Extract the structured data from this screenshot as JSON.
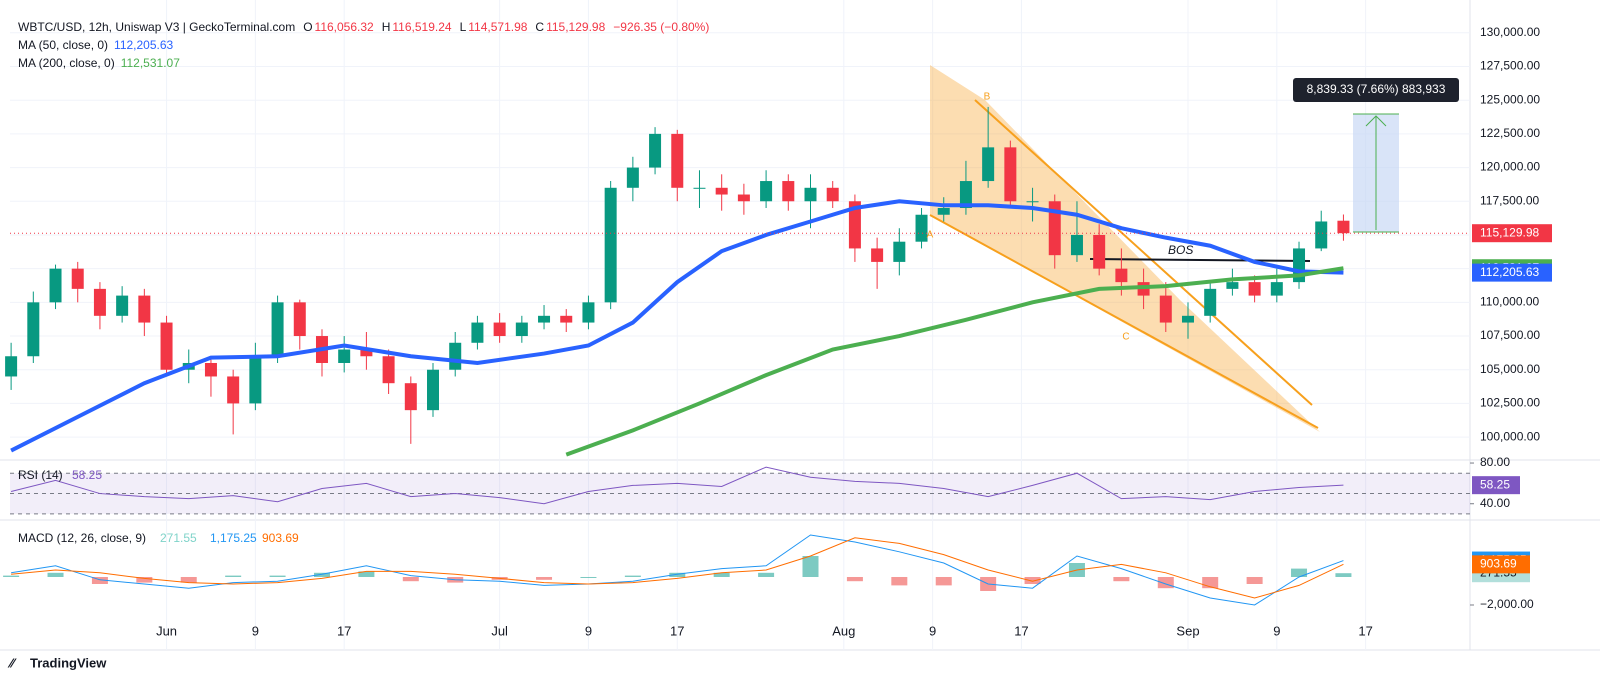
{
  "chart_data": {
    "type": "candlestick",
    "header": {
      "symbol": "WBTC/USD, 12h, Uniswap V3 | GeckoTerminal.com",
      "ohlc": [
        [
          "O",
          "116,056.32"
        ],
        [
          "H",
          "116,519.24"
        ],
        [
          "L",
          "114,571.98"
        ],
        [
          "C",
          "115,129.98"
        ]
      ],
      "change": "−926.35 (−0.80%)"
    },
    "x": [
      -14,
      -12,
      -10,
      -8,
      -6,
      -4,
      -2,
      0,
      2,
      4,
      6,
      8,
      10,
      12,
      14,
      16,
      18,
      20,
      22,
      24,
      26,
      28,
      30,
      32,
      34,
      36,
      38,
      40,
      42,
      44,
      46,
      48,
      50,
      52,
      54,
      56,
      58,
      60,
      62,
      64,
      66,
      68,
      70,
      72,
      74,
      76,
      78,
      80,
      82,
      84,
      86,
      88,
      90,
      92,
      94,
      96,
      98,
      100,
      102,
      104,
      106
    ],
    "open": [
      104500,
      106000,
      110000,
      112500,
      111000,
      109000,
      110500,
      108500,
      105000,
      105500,
      104500,
      102500,
      106000,
      110000,
      107500,
      105500,
      106500,
      106000,
      104000,
      102000,
      105000,
      107000,
      108500,
      107500,
      108500,
      109000,
      108500,
      110000,
      118500,
      120000,
      122500,
      118500,
      118500,
      118000,
      117500,
      119000,
      117500,
      118500,
      117500,
      114000,
      113000,
      114500,
      116500,
      117000,
      119000,
      121500,
      117500,
      117500,
      113500,
      115000,
      112500,
      111500,
      110500,
      108500,
      109000,
      111000,
      111500,
      110500,
      111500,
      114000,
      116056.32
    ],
    "high": [
      107000,
      110800,
      112800,
      113000,
      111500,
      111200,
      111000,
      109000,
      106500,
      106000,
      105000,
      107000,
      110500,
      110200,
      108000,
      107500,
      107800,
      106500,
      104500,
      105500,
      107800,
      109000,
      109200,
      109000,
      109800,
      109500,
      110500,
      119000,
      120800,
      123000,
      122800,
      119800,
      119500,
      118800,
      119800,
      119500,
      119500,
      119000,
      118000,
      114800,
      115500,
      117000,
      117800,
      120500,
      124500,
      122000,
      118500,
      118000,
      117500,
      115800,
      114000,
      112500,
      111500,
      110000,
      111500,
      112500,
      112000,
      112500,
      114500,
      116800,
      116519.24
    ],
    "low": [
      103500,
      105500,
      109500,
      110000,
      108000,
      108500,
      107500,
      104500,
      104000,
      103000,
      100200,
      102000,
      105500,
      106500,
      104500,
      104800,
      105000,
      103200,
      99500,
      101500,
      104500,
      106500,
      107000,
      107000,
      108000,
      107800,
      108000,
      109500,
      117500,
      119500,
      117500,
      117000,
      116800,
      116500,
      117000,
      116800,
      115500,
      117000,
      113000,
      111000,
      112000,
      114000,
      116000,
      116500,
      118500,
      117000,
      116000,
      112500,
      113000,
      112000,
      110500,
      109500,
      107800,
      107300,
      108500,
      110500,
      110000,
      110000,
      111000,
      113800,
      114571.98
    ],
    "close": [
      106000,
      110000,
      112500,
      111000,
      109000,
      110500,
      108500,
      105000,
      105500,
      104500,
      102500,
      106000,
      110000,
      107500,
      105500,
      106500,
      106000,
      104000,
      102000,
      105000,
      107000,
      108500,
      107500,
      108500,
      109000,
      108500,
      110000,
      118500,
      120000,
      122500,
      118500,
      118500,
      118000,
      117500,
      119000,
      117500,
      118500,
      117500,
      114000,
      113000,
      114500,
      116500,
      117000,
      119000,
      121500,
      117500,
      117500,
      113500,
      115000,
      112500,
      111500,
      110500,
      108500,
      109000,
      111000,
      111500,
      110500,
      111500,
      114000,
      116000,
      115129.98
    ],
    "up_color": "#089981",
    "down_color": "#f23645",
    "overlays": [
      {
        "name": "MA (50, close, 0)",
        "value_label": "112,205.63",
        "color": "#2962ff",
        "x": [
          -14,
          -8,
          -2,
          4,
          10,
          16,
          22,
          28,
          34,
          38,
          42,
          46,
          50,
          54,
          58,
          62,
          66,
          70,
          74,
          78,
          82,
          86,
          90,
          94,
          98,
          102,
          106
        ],
        "values": [
          99000,
          101500,
          104000,
          105900,
          106000,
          106800,
          106000,
          105500,
          106200,
          106800,
          108500,
          111500,
          113800,
          115000,
          116000,
          117000,
          117500,
          117200,
          117200,
          117000,
          116500,
          115500,
          114800,
          114200,
          113000,
          112300,
          112205.63
        ]
      },
      {
        "name": "MA (200, close, 0)",
        "value_label": "112,531.07",
        "color": "#4caf50",
        "x": [
          36,
          42,
          48,
          54,
          60,
          66,
          72,
          78,
          84,
          90,
          96,
          102,
          106
        ],
        "values": [
          98700,
          100500,
          102500,
          104600,
          106500,
          107500,
          108700,
          110000,
          111000,
          111200,
          111700,
          112000,
          112531.07
        ]
      }
    ],
    "price_labels": [
      {
        "value": 115129.98,
        "label": "115,129.98",
        "color": "#f23645"
      },
      {
        "value": 112531.07,
        "label": "112,531.07",
        "color": "#4caf50"
      },
      {
        "value": 112205.63,
        "label": "112,205.63",
        "color": "#2962ff"
      }
    ],
    "xlim": [
      -14.1,
      117.4
    ],
    "xticks": [
      {
        "value": 0,
        "label": "Jun"
      },
      {
        "value": 8,
        "label": "9"
      },
      {
        "value": 16,
        "label": "17"
      },
      {
        "value": 30,
        "label": "Jul"
      },
      {
        "value": 38,
        "label": "9"
      },
      {
        "value": 46,
        "label": "17"
      },
      {
        "value": 61,
        "label": "Aug"
      },
      {
        "value": 69,
        "label": "9"
      },
      {
        "value": 77,
        "label": "17"
      },
      {
        "value": 92,
        "label": "Sep"
      },
      {
        "value": 100,
        "label": "9"
      },
      {
        "value": 108,
        "label": "17"
      }
    ],
    "ylim": [
      98450,
      130950
    ],
    "yticks": [
      {
        "value": 100000,
        "label": "100,000.00"
      },
      {
        "value": 102500,
        "label": "102,500.00"
      },
      {
        "value": 105000,
        "label": "105,000.00"
      },
      {
        "value": 107500,
        "label": "107,500.00"
      },
      {
        "value": 110000,
        "label": "110,000.00"
      },
      {
        "value": 112500,
        "label": "112,500.00"
      },
      {
        "value": 115000,
        "label": "115,000.00"
      },
      {
        "value": 117500,
        "label": "117,500.00"
      },
      {
        "value": 120000,
        "label": "120,000.00"
      },
      {
        "value": 122500,
        "label": "122,500.00"
      },
      {
        "value": 125000,
        "label": "125,000.00"
      },
      {
        "value": 127500,
        "label": "127,500.00"
      },
      {
        "value": 130000,
        "label": "130,000.00"
      }
    ],
    "annotations": {
      "bos": "BOS",
      "measure": "8,839.33 (7.66%) 883,933",
      "points": [
        "A",
        "B",
        "C"
      ]
    },
    "rsi": {
      "name": "RSI (14)",
      "color": "#7e57c2",
      "x": [
        -14,
        -10,
        -6,
        -2,
        2,
        6,
        10,
        14,
        18,
        22,
        26,
        30,
        34,
        38,
        42,
        46,
        50,
        54,
        58,
        62,
        66,
        70,
        74,
        78,
        82,
        86,
        90,
        94,
        98,
        102,
        106
      ],
      "values": [
        52,
        63,
        50,
        47,
        45,
        48,
        42,
        55,
        60,
        47,
        50,
        46,
        40,
        52,
        58,
        60,
        57,
        76,
        66,
        62,
        60,
        55,
        47,
        58,
        70,
        45,
        47,
        44,
        52,
        56,
        58.25
      ],
      "ylim": [
        25,
        82
      ],
      "yticks": [
        {
          "value": 80,
          "label": "80.00"
        },
        {
          "value": 40,
          "label": "40.00"
        }
      ]
    },
    "macd": {
      "name": "MACD (12, 26, close, 9)",
      "x": [
        -14,
        -10,
        -6,
        -2,
        2,
        6,
        10,
        14,
        18,
        22,
        26,
        30,
        34,
        38,
        42,
        46,
        50,
        54,
        58,
        62,
        66,
        70,
        74,
        78,
        82,
        86,
        90,
        94,
        98,
        102,
        106
      ],
      "histogram": {
        "color": "#26a69a",
        "down_color": "#ef5350",
        "values": [
          100,
          300,
          -500,
          -400,
          -400,
          100,
          100,
          300,
          400,
          -300,
          -400,
          -200,
          -200,
          0,
          100,
          300,
          300,
          300,
          1500,
          -300,
          -600,
          -600,
          -1000,
          -500,
          1000,
          -300,
          -800,
          -800,
          -500,
          600,
          271.55
        ],
        "value_label": "271.55"
      },
      "macd_line": {
        "color": "#2196f3",
        "values": [
          300,
          800,
          -200,
          -500,
          -800,
          -400,
          -300,
          200,
          800,
          100,
          -200,
          -300,
          -600,
          -500,
          -300,
          200,
          600,
          800,
          3000,
          2500,
          1800,
          1000,
          -500,
          -800,
          1500,
          600,
          -500,
          -1500,
          -2000,
          0,
          1175.25
        ],
        "value_label": "1,175.25"
      },
      "signal_line": {
        "color": "#ff6d00",
        "values": [
          200,
          500,
          300,
          -100,
          -400,
          -500,
          -400,
          -100,
          400,
          400,
          200,
          -100,
          -400,
          -500,
          -400,
          -100,
          300,
          500,
          1500,
          2800,
          2400,
          1600,
          500,
          -300,
          500,
          900,
          300,
          -700,
          -1500,
          -600,
          903.69
        ],
        "value_label": "903.69"
      },
      "ylim": [
        -2930,
        3930
      ],
      "yticks": [
        {
          "value": -2000,
          "label": "−2,000.00"
        }
      ]
    },
    "footer": "TradingView"
  }
}
